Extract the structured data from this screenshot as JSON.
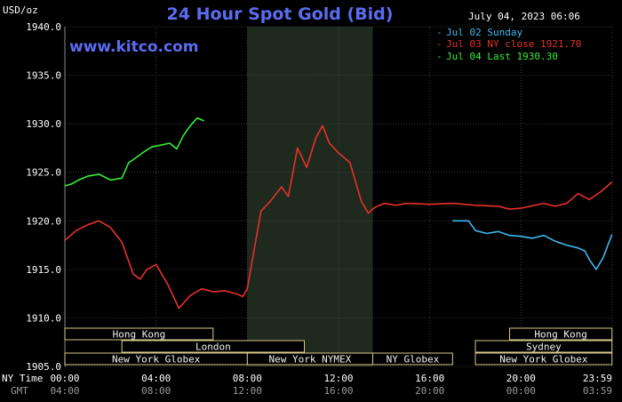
{
  "header": {
    "unit": "USD/oz",
    "title": "24 Hour Spot Gold (Bid)",
    "timestamp": "July 04, 2023 06:06",
    "site": "www.kitco.com"
  },
  "legend": [
    {
      "label": "Jul 02 Sunday",
      "color": "#3fb8f0"
    },
    {
      "label": "Jul 03 NY close 1921.70",
      "color": "#e8302a"
    },
    {
      "label": "Jul 04 Last 1930.30",
      "color": "#33ee33"
    }
  ],
  "axis_rows": {
    "ny_time_label": "NY Time",
    "gmt_label": "GMT",
    "ny_ticks": [
      "00:00",
      "04:00",
      "08:00",
      "12:00",
      "16:00",
      "20:00",
      "23:59"
    ],
    "gmt_ticks": [
      "04:00",
      "08:00",
      "12:00",
      "16:00",
      "20:00",
      "00:00",
      "03:59"
    ]
  },
  "sessions": [
    {
      "label": "Hong Kong",
      "start": 0,
      "end": 6.5,
      "row": 0
    },
    {
      "label": "London",
      "start": 2.5,
      "end": 10.5,
      "row": 1
    },
    {
      "label": "New York Globex",
      "start": 0,
      "end": 8.0,
      "row": 2
    },
    {
      "label": "New York NYMEX",
      "start": 8.0,
      "end": 13.5,
      "row": 2
    },
    {
      "label": "NY Globex",
      "start": 13.5,
      "end": 17.0,
      "row": 2
    },
    {
      "label": "Hong Kong",
      "start": 19.5,
      "end": 23.99,
      "row": 0
    },
    {
      "label": "Sydney",
      "start": 18.0,
      "end": 23.99,
      "row": 1
    },
    {
      "label": "New York Globex",
      "start": 18.0,
      "end": 23.99,
      "row": 2
    }
  ],
  "chart_data": {
    "type": "line",
    "xlabel": "",
    "ylabel": "USD/oz",
    "xlim": [
      0,
      24
    ],
    "ylim": [
      1905,
      1940
    ],
    "y_ticks": [
      "1905.0",
      "1910.0",
      "1915.0",
      "1920.0",
      "1925.0",
      "1930.0",
      "1935.0",
      "1940.0"
    ],
    "shaded_region": [
      8.0,
      13.5
    ],
    "grid": true,
    "series": [
      {
        "name": "Jul 02 Sunday",
        "color": "#3fb8f0",
        "x": [
          17.0,
          17.7,
          18.0,
          18.5,
          19.0,
          19.5,
          20.0,
          20.5,
          21.0,
          21.5,
          22.0,
          22.5,
          22.8,
          23.0,
          23.3,
          23.6,
          23.99
        ],
        "y": [
          1920.0,
          1920.0,
          1919.0,
          1918.7,
          1918.9,
          1918.5,
          1918.4,
          1918.2,
          1918.5,
          1917.9,
          1917.5,
          1917.2,
          1916.9,
          1916.0,
          1915.0,
          1916.2,
          1918.6
        ]
      },
      {
        "name": "Jul 03 NY close 1921.70",
        "color": "#e8302a",
        "x": [
          0,
          0.5,
          1.0,
          1.5,
          2.0,
          2.5,
          3.0,
          3.3,
          3.6,
          4.0,
          4.5,
          5.0,
          5.5,
          6.0,
          6.5,
          7.0,
          7.5,
          7.8,
          8.0,
          8.3,
          8.6,
          9.0,
          9.5,
          9.8,
          10.2,
          10.6,
          11.0,
          11.3,
          11.6,
          12.0,
          12.5,
          13.0,
          13.3,
          13.6,
          14.0,
          14.5,
          15.0,
          16.0,
          17.0,
          18.0,
          19.0,
          19.5,
          20.0,
          21.0,
          21.5,
          22.0,
          22.5,
          23.0,
          23.5,
          23.99
        ],
        "y": [
          1918.0,
          1919.0,
          1919.6,
          1920.0,
          1919.3,
          1917.8,
          1914.5,
          1914.0,
          1915.0,
          1915.5,
          1913.5,
          1911.0,
          1912.3,
          1913.0,
          1912.7,
          1912.8,
          1912.5,
          1912.2,
          1913.0,
          1917.0,
          1921.0,
          1922.0,
          1923.5,
          1922.5,
          1927.5,
          1925.5,
          1928.5,
          1929.8,
          1928.0,
          1927.0,
          1926.0,
          1922.0,
          1920.8,
          1921.4,
          1921.8,
          1921.6,
          1921.8,
          1921.7,
          1921.8,
          1921.6,
          1921.5,
          1921.2,
          1921.3,
          1921.8,
          1921.5,
          1921.8,
          1922.8,
          1922.2,
          1923.0,
          1924.0
        ]
      },
      {
        "name": "Jul 04 Last 1930.30",
        "color": "#33ee33",
        "x": [
          0,
          0.3,
          0.6,
          1.0,
          1.5,
          2.0,
          2.5,
          2.8,
          3.0,
          3.4,
          3.8,
          4.2,
          4.6,
          4.9,
          5.2,
          5.5,
          5.8,
          6.1
        ],
        "y": [
          1923.6,
          1923.8,
          1924.2,
          1924.6,
          1924.8,
          1924.2,
          1924.4,
          1926.0,
          1926.3,
          1927.0,
          1927.6,
          1927.8,
          1928.0,
          1927.4,
          1928.8,
          1929.8,
          1930.6,
          1930.3
        ]
      }
    ]
  }
}
